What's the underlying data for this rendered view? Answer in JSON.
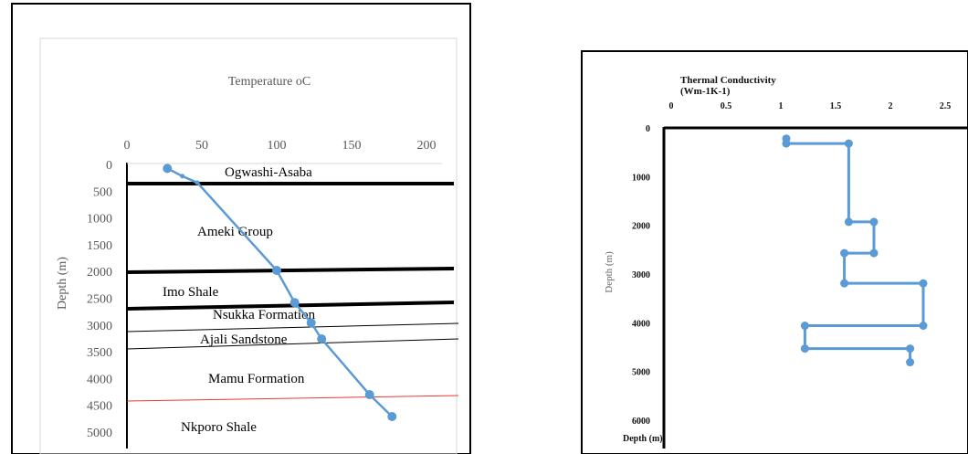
{
  "chart_data": [
    {
      "type": "line",
      "title": "Temperature oC",
      "ylabel": "Depth (m)",
      "x_ticks": [
        "0",
        "50",
        "100",
        "150",
        "200"
      ],
      "y_ticks": [
        "0",
        "500",
        "1000",
        "1500",
        "2000",
        "2500",
        "3000",
        "3500",
        "4000",
        "4500",
        "5000"
      ],
      "xlim": [
        0,
        200
      ],
      "ylim": [
        0,
        5000
      ],
      "series": [
        {
          "color": "#5b9bd5",
          "points": [
            {
              "x": 27,
              "y": 75
            },
            {
              "x": 37,
              "y": 220
            },
            {
              "x": 47,
              "y": 340
            },
            {
              "x": 100,
              "y": 1980
            },
            {
              "x": 112,
              "y": 2580
            },
            {
              "x": 123,
              "y": 2960
            },
            {
              "x": 130,
              "y": 3260
            },
            {
              "x": 162,
              "y": 4300
            },
            {
              "x": 177,
              "y": 4710
            }
          ]
        }
      ],
      "formations": [
        {
          "name": "Ogwashi-Asaba"
        },
        {
          "name": "Ameki Group"
        },
        {
          "name": "Imo Shale"
        },
        {
          "name": "Nsukka Formation"
        },
        {
          "name": "Ajali Sandstone"
        },
        {
          "name": "Mamu Formation"
        },
        {
          "name": "Nkporo Shale"
        }
      ]
    },
    {
      "type": "line",
      "title_line1": "Thermal Conductivity",
      "title_line2": "(Wm-1K-1)",
      "ylabel": "Depth (m)",
      "bottom_label": "Depth (m)",
      "x_ticks": [
        "0",
        "0.5",
        "1",
        "1.5",
        "2",
        "2.5"
      ],
      "y_ticks": [
        "0",
        "1000",
        "2000",
        "3000",
        "4000",
        "5000",
        "6000"
      ],
      "xlim": [
        0,
        2.5
      ],
      "ylim": [
        0,
        6000
      ],
      "series": [
        {
          "color": "#5b9bd5",
          "points": [
            {
              "x": 1.05,
              "y": 220
            },
            {
              "x": 1.05,
              "y": 320
            },
            {
              "x": 1.62,
              "y": 320
            },
            {
              "x": 1.62,
              "y": 1930
            },
            {
              "x": 1.85,
              "y": 1930
            },
            {
              "x": 1.85,
              "y": 2570
            },
            {
              "x": 1.58,
              "y": 2570
            },
            {
              "x": 1.58,
              "y": 3190
            },
            {
              "x": 2.3,
              "y": 3190
            },
            {
              "x": 2.3,
              "y": 4060
            },
            {
              "x": 1.22,
              "y": 4060
            },
            {
              "x": 1.22,
              "y": 4530
            },
            {
              "x": 2.18,
              "y": 4530
            },
            {
              "x": 2.18,
              "y": 4810
            }
          ]
        }
      ]
    }
  ]
}
